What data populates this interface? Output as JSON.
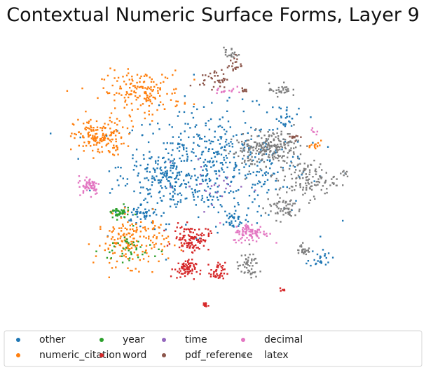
{
  "chart_data": {
    "type": "scatter",
    "title": "Contextual Numeric Surface Forms, Layer 9",
    "xlabel": "",
    "ylabel": "",
    "axes_visible": false,
    "grid": false,
    "xlim": [
      0,
      100
    ],
    "ylim": [
      0,
      100
    ],
    "legend_placement": "bottom",
    "legend_columns": 5,
    "series": [
      {
        "name": "other",
        "color": "#1f77b4",
        "clusters": [
          {
            "cx": 50,
            "cy": 55,
            "rx": 26,
            "ry": 18,
            "n": 520
          },
          {
            "cx": 35,
            "cy": 50,
            "rx": 10,
            "ry": 8,
            "n": 120
          },
          {
            "cx": 28,
            "cy": 38,
            "rx": 5,
            "ry": 3,
            "n": 45
          },
          {
            "cx": 82,
            "cy": 22,
            "rx": 3,
            "ry": 3,
            "n": 25
          },
          {
            "cx": 72,
            "cy": 74,
            "rx": 3,
            "ry": 3,
            "n": 20
          },
          {
            "cx": 55,
            "cy": 35,
            "rx": 4,
            "ry": 3,
            "n": 30
          }
        ]
      },
      {
        "name": "numeric_citation",
        "color": "#ff7f0e",
        "clusters": [
          {
            "cx": 15,
            "cy": 65,
            "rx": 7,
            "ry": 6,
            "n": 160
          },
          {
            "cx": 28,
            "cy": 81,
            "rx": 11,
            "ry": 7,
            "n": 170
          },
          {
            "cx": 25,
            "cy": 28,
            "rx": 10,
            "ry": 8,
            "n": 180
          },
          {
            "cx": 81,
            "cy": 62,
            "rx": 1.5,
            "ry": 1.5,
            "n": 15
          }
        ]
      },
      {
        "name": "year",
        "color": "#2ca02c",
        "clusters": [
          {
            "cx": 21,
            "cy": 38,
            "rx": 3,
            "ry": 2,
            "n": 40
          },
          {
            "cx": 24,
            "cy": 25,
            "rx": 8,
            "ry": 6,
            "n": 40
          }
        ]
      },
      {
        "name": "word",
        "color": "#d62728",
        "clusters": [
          {
            "cx": 43,
            "cy": 29,
            "rx": 5,
            "ry": 4,
            "n": 110
          },
          {
            "cx": 41,
            "cy": 18,
            "rx": 3,
            "ry": 3,
            "n": 70
          },
          {
            "cx": 51,
            "cy": 17,
            "rx": 2,
            "ry": 3,
            "n": 40
          },
          {
            "cx": 47,
            "cy": 5,
            "rx": 1,
            "ry": 1,
            "n": 12
          },
          {
            "cx": 71,
            "cy": 11,
            "rx": 1,
            "ry": 1,
            "n": 6
          }
        ]
      },
      {
        "name": "time",
        "color": "#9467bd",
        "clusters": [
          {
            "cx": 50,
            "cy": 48,
            "rx": 10,
            "ry": 8,
            "n": 25
          }
        ]
      },
      {
        "name": "pdf_reference",
        "color": "#8c564b",
        "clusters": [
          {
            "cx": 50,
            "cy": 86,
            "rx": 4,
            "ry": 3,
            "n": 35
          },
          {
            "cx": 56,
            "cy": 91,
            "rx": 2,
            "ry": 3,
            "n": 20
          },
          {
            "cx": 75,
            "cy": 65,
            "rx": 1.5,
            "ry": 1,
            "n": 12
          },
          {
            "cx": 59,
            "cy": 82,
            "rx": 1,
            "ry": 1,
            "n": 8
          }
        ]
      },
      {
        "name": "decimal",
        "color": "#e377c2",
        "clusters": [
          {
            "cx": 12,
            "cy": 48,
            "rx": 3,
            "ry": 3,
            "n": 60
          },
          {
            "cx": 61,
            "cy": 31,
            "rx": 5,
            "ry": 3,
            "n": 90
          },
          {
            "cx": 53,
            "cy": 82,
            "rx": 3,
            "ry": 2,
            "n": 15
          },
          {
            "cx": 80,
            "cy": 67,
            "rx": 1,
            "ry": 1,
            "n": 6
          }
        ]
      },
      {
        "name": "latex",
        "color": "#7f7f7f",
        "clusters": [
          {
            "cx": 68,
            "cy": 62,
            "rx": 7,
            "ry": 5,
            "n": 150
          },
          {
            "cx": 78,
            "cy": 50,
            "rx": 8,
            "ry": 6,
            "n": 120
          },
          {
            "cx": 60,
            "cy": 60,
            "rx": 6,
            "ry": 6,
            "n": 70
          },
          {
            "cx": 71,
            "cy": 40,
            "rx": 5,
            "ry": 4,
            "n": 60
          },
          {
            "cx": 60,
            "cy": 19,
            "rx": 3,
            "ry": 4,
            "n": 50
          },
          {
            "cx": 70,
            "cy": 82,
            "rx": 3,
            "ry": 2,
            "n": 30
          },
          {
            "cx": 55,
            "cy": 95,
            "rx": 2,
            "ry": 2,
            "n": 20
          },
          {
            "cx": 77,
            "cy": 25,
            "rx": 2,
            "ry": 2,
            "n": 25
          },
          {
            "cx": 89,
            "cy": 52,
            "rx": 1.5,
            "ry": 1,
            "n": 8
          }
        ]
      }
    ]
  }
}
